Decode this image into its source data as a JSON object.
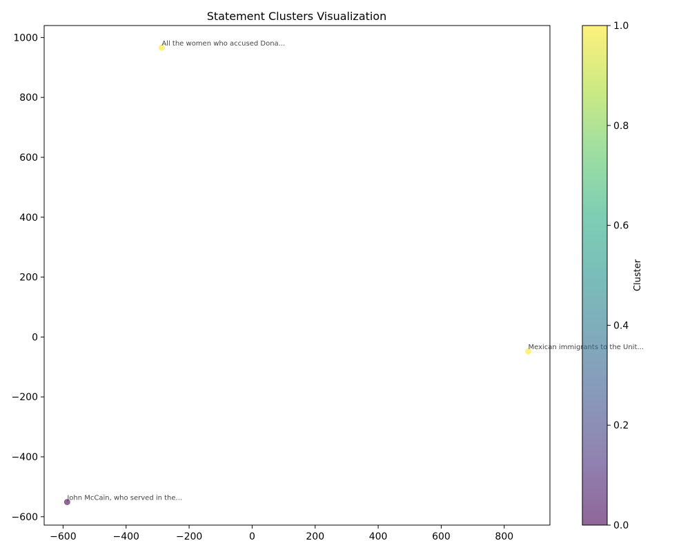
{
  "chart_data": {
    "type": "scatter",
    "title": "Statement Clusters Visualization",
    "xlabel": "",
    "ylabel": "",
    "xlim": [
      -660,
      945
    ],
    "ylim": [
      -628,
      1040
    ],
    "xticks": [
      -600,
      -400,
      -200,
      0,
      200,
      400,
      600,
      800
    ],
    "yticks": [
      -600,
      -400,
      -200,
      0,
      200,
      400,
      600,
      800,
      1000
    ],
    "grid": false,
    "points": [
      {
        "x": -287,
        "y": 966,
        "cluster": 1,
        "label": "All the women who accused Dona..."
      },
      {
        "x": 876,
        "y": -48,
        "cluster": 1,
        "label": "Mexican immigrants to the Unit..."
      },
      {
        "x": -587,
        "y": -551,
        "cluster": 0,
        "label": "John McCain, who served in the..."
      }
    ],
    "colorbar": {
      "label": "Cluster",
      "range": [
        0.0,
        1.0
      ],
      "ticks": [
        "0.0",
        "0.2",
        "0.4",
        "0.6",
        "0.8",
        "1.0"
      ],
      "colormap": "viridis",
      "colors": {
        "low": "#440154",
        "high": "#fde725"
      }
    },
    "marker_alpha": 0.6
  }
}
